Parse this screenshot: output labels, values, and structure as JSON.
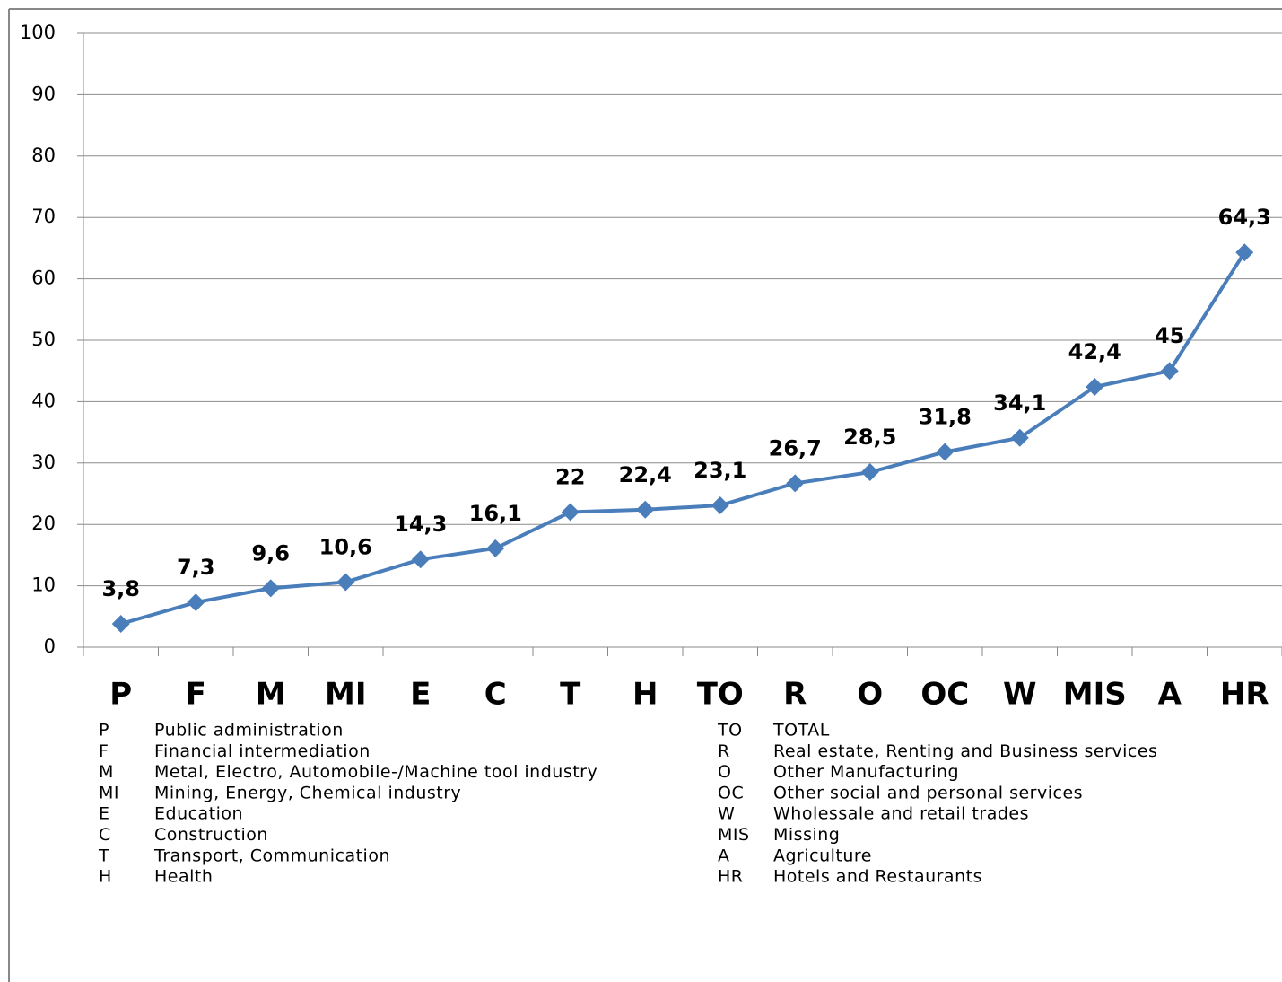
{
  "chart_data": {
    "type": "line",
    "categories": [
      "P",
      "F",
      "M",
      "MI",
      "E",
      "C",
      "T",
      "H",
      "TO",
      "R",
      "O",
      "OC",
      "W",
      "MIS",
      "A",
      "HR"
    ],
    "series": [
      {
        "color": "#4a7ebb",
        "values": [
          3.8,
          7.3,
          9.6,
          10.6,
          14.3,
          16.1,
          22,
          22.4,
          23.1,
          26.7,
          28.5,
          31.8,
          34.1,
          42.4,
          45,
          64.3
        ],
        "value_labels": [
          "3,8",
          "7,3",
          "9,6",
          "10,6",
          "14,3",
          "16,1",
          "22",
          "22,4",
          "23,1",
          "26,7",
          "28,5",
          "31,8",
          "34,1",
          "42,4",
          "45",
          "64,3"
        ]
      }
    ],
    "ylim": [
      0,
      100
    ],
    "yticks": [
      0,
      10,
      20,
      30,
      40,
      50,
      60,
      70,
      80,
      90,
      100
    ],
    "grid": true,
    "legend_items": [
      {
        "code": "P",
        "name": "Public administration"
      },
      {
        "code": "F",
        "name": "Financial intermediation"
      },
      {
        "code": "M",
        "name": "Metal, Electro, Automobile-/Machine tool industry"
      },
      {
        "code": "MI",
        "name": "Mining, Energy, Chemical industry"
      },
      {
        "code": "E",
        "name": "Education"
      },
      {
        "code": "C",
        "name": "Construction"
      },
      {
        "code": "T",
        "name": "Transport, Communication"
      },
      {
        "code": "H",
        "name": "Health"
      },
      {
        "code": "TO",
        "name": "TOTAL"
      },
      {
        "code": "R",
        "name": "Real estate, Renting and Business services"
      },
      {
        "code": "O",
        "name": "Other Manufacturing"
      },
      {
        "code": "OC",
        "name": "Other social and personal services"
      },
      {
        "code": "W",
        "name": "Wholessale and retail trades"
      },
      {
        "code": "MIS",
        "name": "Missing"
      },
      {
        "code": "A",
        "name": "Agriculture"
      },
      {
        "code": "HR",
        "name": "Hotels and Restaurants"
      }
    ]
  }
}
